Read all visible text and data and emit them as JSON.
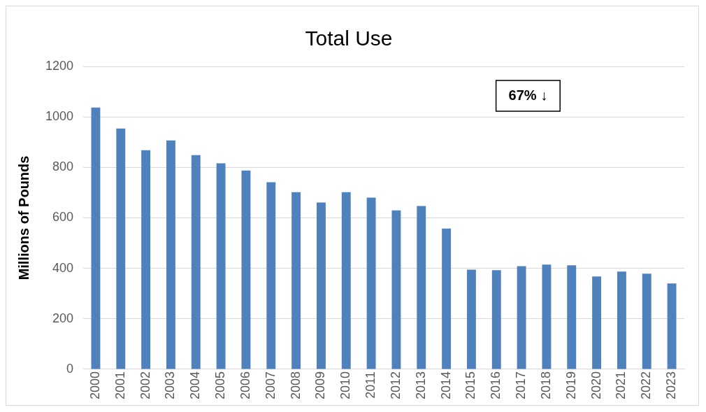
{
  "chart_data": {
    "type": "bar",
    "title": "Total Use",
    "ylabel": "Millions of Pounds",
    "categories": [
      "2000",
      "2001",
      "2002",
      "2003",
      "2004",
      "2005",
      "2006",
      "2007",
      "2008",
      "2009",
      "2010",
      "2011",
      "2012",
      "2013",
      "2014",
      "2015",
      "2016",
      "2017",
      "2018",
      "2019",
      "2020",
      "2021",
      "2022",
      "2023"
    ],
    "values": [
      1037,
      954,
      868,
      907,
      849,
      816,
      788,
      741,
      702,
      661,
      702,
      680,
      630,
      647,
      558,
      395,
      393,
      409,
      415,
      412,
      368,
      387,
      379,
      340
    ],
    "color": "#4f81bd",
    "ylim": [
      0,
      1200
    ],
    "yticks": [
      0,
      200,
      400,
      600,
      800,
      1000,
      1200
    ],
    "grid": "y",
    "legend": false,
    "annotations": [
      "67% ↓"
    ]
  }
}
